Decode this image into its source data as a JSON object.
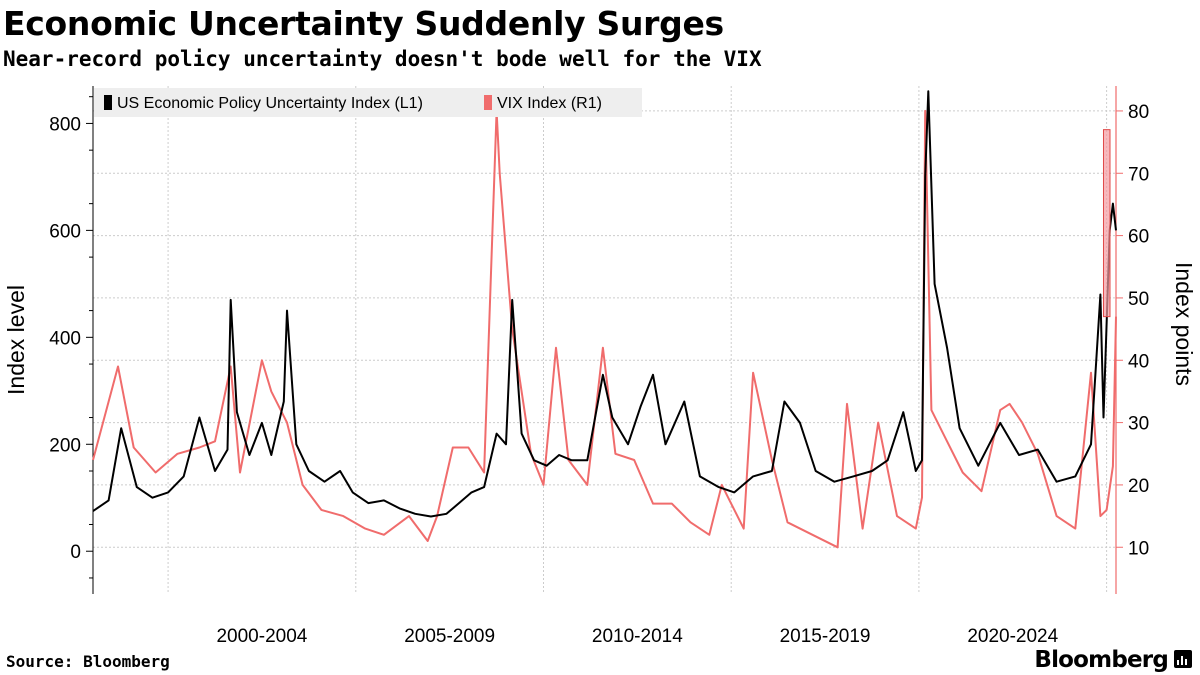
{
  "header": {
    "title": "Economic Uncertainty Suddenly Surges",
    "subtitle": "Near-record policy uncertainty doesn't bode well for the VIX"
  },
  "footer": {
    "source": "Source: Bloomberg",
    "brand": "Bloomberg"
  },
  "colors": {
    "epu": "#000000",
    "vix": "#f06c6c",
    "vix_axis": "#f06c6c",
    "highlight_fill": "#f59aa0",
    "highlight_stroke": "#e04848",
    "grid": "#cccccc",
    "legend_bg": "#eeeeee"
  },
  "chart_data": {
    "type": "line",
    "x_range": [
      "1998-01",
      "2025-04"
    ],
    "xlabel_ticks": [
      "2000-2004",
      "2005-2009",
      "2010-2014",
      "2015-2019",
      "2020-2024"
    ],
    "ylabel": "Index level",
    "ylabel_right": "Index points",
    "ylim": [
      -80,
      870
    ],
    "ylim_right": [
      2.5,
      84
    ],
    "yticks": [
      0,
      200,
      400,
      600,
      800
    ],
    "yticks_right": [
      10,
      20,
      30,
      40,
      50,
      60,
      70,
      80
    ],
    "grid": true,
    "legend_position": "top-left",
    "series": [
      {
        "name": "US Economic Policy Uncertainty Index (L1)",
        "axis": "left",
        "points": [
          [
            "1998-01",
            75
          ],
          [
            "1998-06",
            95
          ],
          [
            "1998-10",
            230
          ],
          [
            "1999-03",
            120
          ],
          [
            "1999-08",
            100
          ],
          [
            "2000-01",
            110
          ],
          [
            "2000-06",
            140
          ],
          [
            "2000-11",
            250
          ],
          [
            "2001-04",
            150
          ],
          [
            "2001-08",
            190
          ],
          [
            "2001-09",
            470
          ],
          [
            "2001-11",
            260
          ],
          [
            "2002-03",
            180
          ],
          [
            "2002-07",
            240
          ],
          [
            "2002-10",
            180
          ],
          [
            "2003-02",
            280
          ],
          [
            "2003-03",
            450
          ],
          [
            "2003-06",
            200
          ],
          [
            "2003-10",
            150
          ],
          [
            "2004-03",
            130
          ],
          [
            "2004-08",
            150
          ],
          [
            "2004-12",
            110
          ],
          [
            "2005-05",
            90
          ],
          [
            "2005-10",
            95
          ],
          [
            "2006-03",
            80
          ],
          [
            "2006-08",
            70
          ],
          [
            "2007-01",
            65
          ],
          [
            "2007-06",
            70
          ],
          [
            "2007-10",
            90
          ],
          [
            "2008-02",
            110
          ],
          [
            "2008-06",
            120
          ],
          [
            "2008-10",
            220
          ],
          [
            "2009-01",
            200
          ],
          [
            "2009-03",
            470
          ],
          [
            "2009-06",
            220
          ],
          [
            "2009-10",
            170
          ],
          [
            "2010-02",
            160
          ],
          [
            "2010-06",
            180
          ],
          [
            "2010-10",
            170
          ],
          [
            "2011-03",
            170
          ],
          [
            "2011-08",
            330
          ],
          [
            "2011-11",
            250
          ],
          [
            "2012-04",
            200
          ],
          [
            "2012-08",
            270
          ],
          [
            "2012-12",
            330
          ],
          [
            "2013-04",
            200
          ],
          [
            "2013-10",
            280
          ],
          [
            "2014-03",
            140
          ],
          [
            "2014-09",
            120
          ],
          [
            "2015-02",
            110
          ],
          [
            "2015-08",
            140
          ],
          [
            "2016-02",
            150
          ],
          [
            "2016-06",
            280
          ],
          [
            "2016-11",
            240
          ],
          [
            "2017-04",
            150
          ],
          [
            "2017-10",
            130
          ],
          [
            "2018-04",
            140
          ],
          [
            "2018-10",
            150
          ],
          [
            "2019-03",
            170
          ],
          [
            "2019-08",
            260
          ],
          [
            "2019-12",
            150
          ],
          [
            "2020-02",
            170
          ],
          [
            "2020-03",
            700
          ],
          [
            "2020-04",
            860
          ],
          [
            "2020-06",
            500
          ],
          [
            "2020-10",
            380
          ],
          [
            "2021-02",
            230
          ],
          [
            "2021-08",
            160
          ],
          [
            "2022-03",
            240
          ],
          [
            "2022-09",
            180
          ],
          [
            "2023-03",
            190
          ],
          [
            "2023-09",
            130
          ],
          [
            "2024-03",
            140
          ],
          [
            "2024-08",
            200
          ],
          [
            "2024-11",
            480
          ],
          [
            "2024-12",
            250
          ],
          [
            "2025-02",
            600
          ],
          [
            "2025-03",
            650
          ],
          [
            "2025-04",
            600
          ]
        ]
      },
      {
        "name": "VIX Index (R1)",
        "axis": "right",
        "points": [
          [
            "1998-01",
            24
          ],
          [
            "1998-09",
            39
          ],
          [
            "1999-02",
            26
          ],
          [
            "1999-09",
            22
          ],
          [
            "2000-04",
            25
          ],
          [
            "2000-11",
            26
          ],
          [
            "2001-04",
            27
          ],
          [
            "2001-09",
            39
          ],
          [
            "2001-12",
            22
          ],
          [
            "2002-07",
            40
          ],
          [
            "2002-10",
            35
          ],
          [
            "2003-03",
            30
          ],
          [
            "2003-08",
            20
          ],
          [
            "2004-02",
            16
          ],
          [
            "2004-09",
            15
          ],
          [
            "2005-04",
            13
          ],
          [
            "2005-10",
            12
          ],
          [
            "2006-06",
            15
          ],
          [
            "2006-12",
            11
          ],
          [
            "2007-03",
            15
          ],
          [
            "2007-08",
            26
          ],
          [
            "2008-01",
            26
          ],
          [
            "2008-06",
            22
          ],
          [
            "2008-10",
            80
          ],
          [
            "2008-11",
            70
          ],
          [
            "2009-03",
            45
          ],
          [
            "2009-09",
            25
          ],
          [
            "2010-01",
            20
          ],
          [
            "2010-05",
            42
          ],
          [
            "2010-09",
            24
          ],
          [
            "2011-03",
            20
          ],
          [
            "2011-08",
            42
          ],
          [
            "2011-12",
            25
          ],
          [
            "2012-06",
            24
          ],
          [
            "2012-12",
            17
          ],
          [
            "2013-06",
            17
          ],
          [
            "2013-12",
            14
          ],
          [
            "2014-06",
            12
          ],
          [
            "2014-10",
            20
          ],
          [
            "2015-05",
            13
          ],
          [
            "2015-08",
            38
          ],
          [
            "2016-02",
            24
          ],
          [
            "2016-07",
            14
          ],
          [
            "2017-03",
            12
          ],
          [
            "2017-11",
            10
          ],
          [
            "2018-02",
            33
          ],
          [
            "2018-07",
            13
          ],
          [
            "2018-12",
            30
          ],
          [
            "2019-06",
            15
          ],
          [
            "2019-12",
            13
          ],
          [
            "2020-02",
            18
          ],
          [
            "2020-03",
            80
          ],
          [
            "2020-05",
            32
          ],
          [
            "2020-09",
            28
          ],
          [
            "2021-03",
            22
          ],
          [
            "2021-09",
            19
          ],
          [
            "2022-03",
            32
          ],
          [
            "2022-06",
            33
          ],
          [
            "2022-10",
            30
          ],
          [
            "2023-03",
            25
          ],
          [
            "2023-09",
            15
          ],
          [
            "2024-03",
            13
          ],
          [
            "2024-08",
            38
          ],
          [
            "2024-11",
            15
          ],
          [
            "2025-01",
            16
          ],
          [
            "2025-03",
            23
          ],
          [
            "2025-04",
            47
          ]
        ]
      }
    ],
    "highlight": {
      "x_range": [
        "2024-12",
        "2025-06"
      ],
      "y_range": [
        47,
        77
      ],
      "axis": "right"
    }
  }
}
